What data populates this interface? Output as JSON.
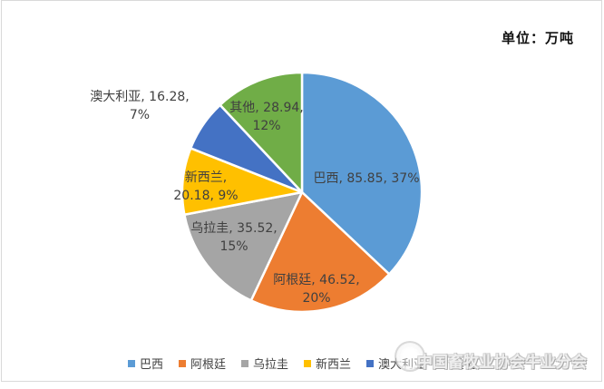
{
  "chart_data": {
    "type": "pie",
    "title": "",
    "unit_label": "单位：万吨",
    "categories": [
      "巴西",
      "阿根廷",
      "乌拉圭",
      "新西兰",
      "澳大利亚",
      "其他"
    ],
    "values": [
      85.85,
      46.52,
      35.52,
      20.18,
      16.28,
      28.94
    ],
    "percentages": [
      37,
      20,
      15,
      9,
      7,
      12
    ],
    "colors": [
      "#5B9BD5",
      "#ED7D31",
      "#A5A5A5",
      "#FFC000",
      "#4472C4",
      "#70AD47"
    ],
    "label_lines": [
      [
        "巴西, 85.85, 37%"
      ],
      [
        "阿根廷, 46.52,",
        "20%"
      ],
      [
        "乌拉圭, 35.52,",
        "15%"
      ],
      [
        "新西兰,",
        "20.18, 9%"
      ],
      [
        "澳大利亚, 16.28,",
        "7%"
      ],
      [
        "其他, 28.94,",
        "12%"
      ]
    ],
    "legend_position": "bottom",
    "start_angle_deg": 0,
    "label_color": "#404040"
  },
  "watermark": {
    "text": "中国畜牧业协会牛业分会",
    "logo": "china-animal-husbandry-association-cattle-branch-logo"
  }
}
